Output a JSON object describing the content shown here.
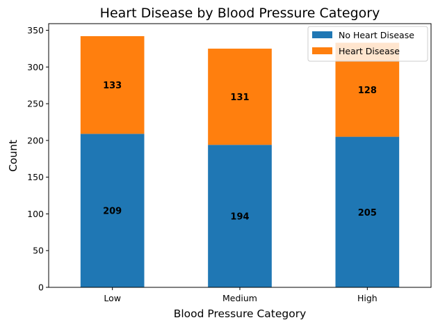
{
  "chart_data": {
    "type": "bar",
    "stacked": true,
    "title": "Heart Disease by Blood Pressure Category",
    "xlabel": "Blood Pressure Category",
    "ylabel": "Count",
    "categories": [
      "Low",
      "Medium",
      "High"
    ],
    "series": [
      {
        "name": "No Heart Disease",
        "values": [
          209,
          194,
          205
        ],
        "color": "#1f77b4"
      },
      {
        "name": "Heart Disease",
        "values": [
          133,
          131,
          128
        ],
        "color": "#ff7f0e"
      }
    ],
    "ylim": [
      0,
      359
    ],
    "yticks": [
      0,
      50,
      100,
      150,
      200,
      250,
      300,
      350
    ],
    "grid": false,
    "legend_position": "top-right"
  }
}
